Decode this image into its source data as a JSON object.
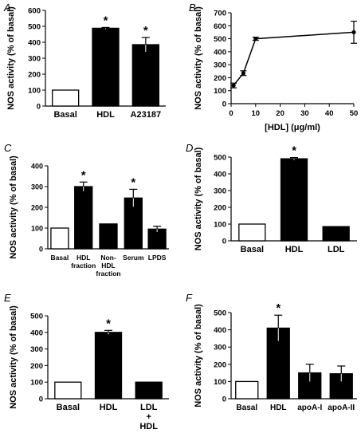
{
  "chart_data": [
    {
      "panel_label": "A",
      "type": "bar",
      "ylabel": "NOS activity (% of basal)",
      "ylim": [
        0,
        600
      ],
      "yticks": [
        "0",
        "100",
        "200",
        "300",
        "400",
        "500",
        "600"
      ],
      "categories": [
        [
          "Basal"
        ],
        [
          "HDL"
        ],
        [
          "A23187"
        ]
      ],
      "values": [
        100,
        488,
        385
      ],
      "errors": [
        0,
        5,
        45
      ],
      "fill": [
        "white",
        "black",
        "black"
      ],
      "significant": [
        false,
        true,
        true
      ],
      "sig_marker": "*"
    },
    {
      "panel_label": "B",
      "type": "line",
      "ylabel": "NOS activity (% of basal)",
      "xlabel": "[HDL] (μg/ml)",
      "xlim": [
        0,
        50
      ],
      "ylim": [
        0,
        700
      ],
      "xticks": [
        "0",
        "10",
        "20",
        "30",
        "40",
        "50"
      ],
      "yticks": [
        "0",
        "100",
        "200",
        "300",
        "400",
        "500",
        "600",
        "700"
      ],
      "x": [
        1,
        5,
        10,
        50
      ],
      "y": [
        140,
        235,
        500,
        550
      ],
      "errors": [
        18,
        18,
        12,
        85
      ]
    },
    {
      "panel_label": "C",
      "type": "bar",
      "ylabel": "NOS activity (% of basal)",
      "ylim": [
        0,
        400
      ],
      "yticks": [
        "0",
        "100",
        "200",
        "300",
        "400"
      ],
      "categories": [
        [
          "Basal"
        ],
        [
          "HDL",
          "fraction"
        ],
        [
          "Non-",
          "HDL",
          "fraction"
        ],
        [
          "Serum"
        ],
        [
          "LPDS"
        ]
      ],
      "values": [
        100,
        300,
        120,
        245,
        95
      ],
      "errors": [
        0,
        22,
        0,
        42,
        14
      ],
      "fill": [
        "white",
        "black",
        "black",
        "black",
        "black"
      ],
      "significant": [
        false,
        true,
        false,
        true,
        false
      ],
      "sig_marker": "*"
    },
    {
      "panel_label": "D",
      "type": "bar",
      "ylabel": "NOS activity (% of basal)",
      "ylim": [
        0,
        500
      ],
      "yticks": [
        "0",
        "100",
        "200",
        "300",
        "400",
        "500"
      ],
      "categories": [
        [
          "Basal"
        ],
        [
          "HDL"
        ],
        [
          "LDL"
        ]
      ],
      "values": [
        100,
        490,
        85
      ],
      "errors": [
        0,
        7,
        0
      ],
      "fill": [
        "white",
        "black",
        "black"
      ],
      "significant": [
        false,
        true,
        false
      ],
      "sig_marker": "*"
    },
    {
      "panel_label": "E",
      "type": "bar",
      "ylabel": "NOS activity (% of basal)",
      "ylim": [
        0,
        500
      ],
      "yticks": [
        "0",
        "100",
        "200",
        "300",
        "400",
        "500"
      ],
      "categories": [
        [
          "Basal"
        ],
        [
          "HDL"
        ],
        [
          "LDL",
          "+",
          "HDL"
        ]
      ],
      "values": [
        100,
        400,
        100
      ],
      "errors": [
        0,
        12,
        0
      ],
      "fill": [
        "white",
        "black",
        "black"
      ],
      "significant": [
        false,
        true,
        false
      ],
      "sig_marker": "*"
    },
    {
      "panel_label": "F",
      "type": "bar",
      "ylabel": "NOS activity (% of basal)",
      "ylim": [
        0,
        500
      ],
      "yticks": [
        "0",
        "100",
        "200",
        "300",
        "400",
        "500"
      ],
      "categories": [
        [
          "Basal"
        ],
        [
          "HDL"
        ],
        [
          "apoA-I"
        ],
        [
          "apoA-II"
        ]
      ],
      "values": [
        100,
        410,
        150,
        145
      ],
      "errors": [
        0,
        75,
        50,
        45
      ],
      "fill": [
        "white",
        "black",
        "black",
        "black"
      ],
      "significant": [
        false,
        true,
        false,
        false
      ],
      "sig_marker": "*"
    }
  ]
}
